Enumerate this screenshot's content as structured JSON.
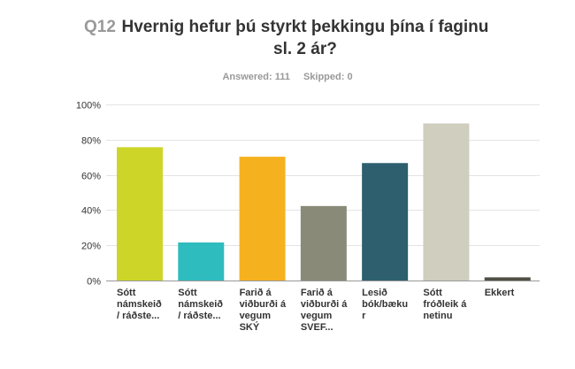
{
  "question": {
    "number": "Q12",
    "text": "Hvernig hefur þú styrkt þekkingu þína í faginu sl. 2 ár?"
  },
  "stats": {
    "answered": "Answered: 111",
    "skipped": "Skipped: 0"
  },
  "chart_data": {
    "type": "bar",
    "categories": [
      "Sótt námskeið / ráðste...",
      "Sótt námskeið / ráðste...",
      "Farið á viðburði á vegum SKÝ",
      "Farið á viðburði á vegum SVEF...",
      "Lesið bók/bækur",
      "Sótt fróðleik á netinu",
      "Ekkert"
    ],
    "values": [
      75.7,
      21.6,
      70.3,
      42.3,
      66.7,
      89.2,
      1.8
    ],
    "colors": [
      "#cdd628",
      "#2fbcbf",
      "#f6b11f",
      "#8a8a78",
      "#2d5f6e",
      "#cfcebf",
      "#4f4f45"
    ],
    "yticks": [
      "0%",
      "20%",
      "40%",
      "60%",
      "80%",
      "100%"
    ],
    "ylim": [
      0,
      100
    ],
    "grid": true
  }
}
